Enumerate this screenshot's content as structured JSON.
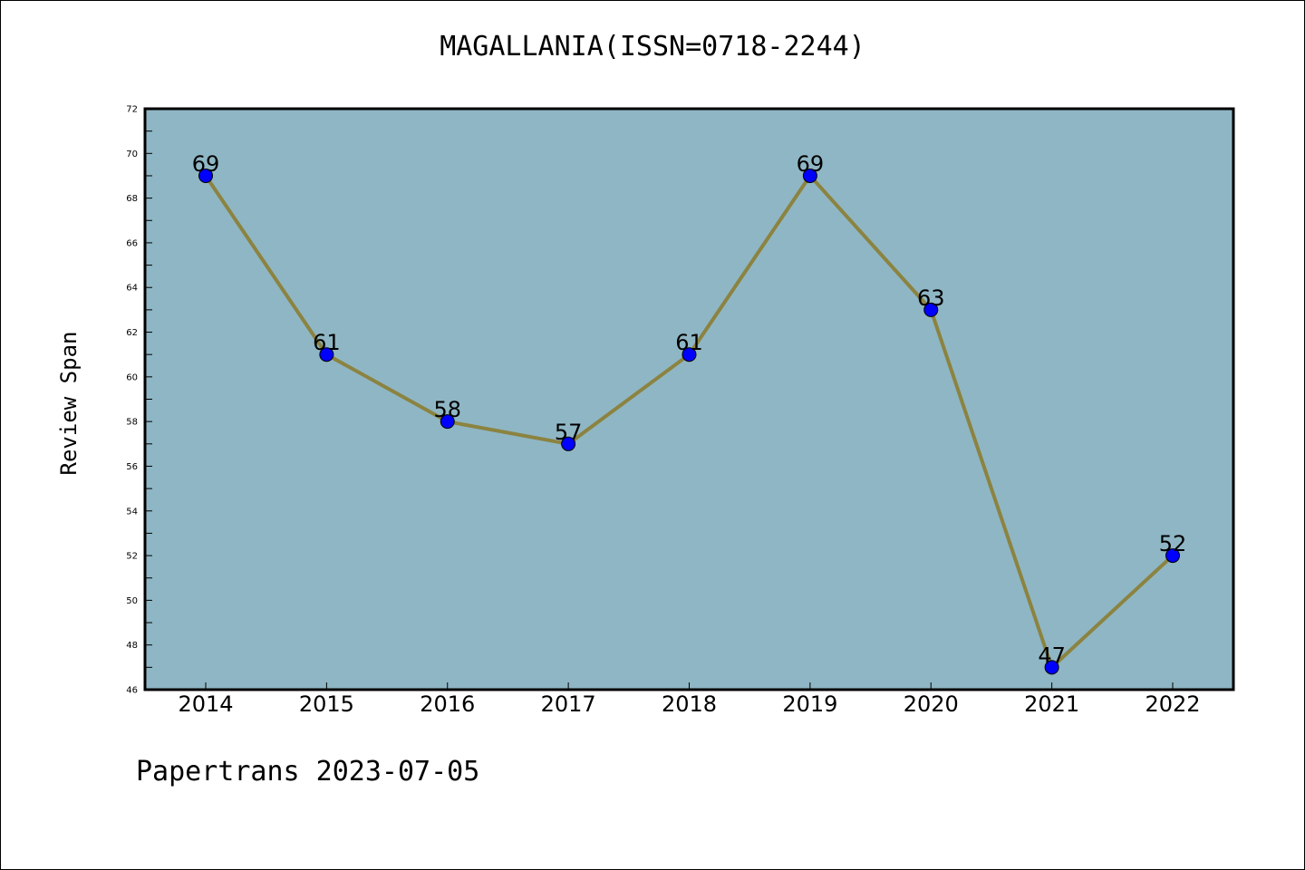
{
  "chart_data": {
    "type": "line",
    "title": "MAGALLANIA(ISSN=0718-2244)",
    "ylabel": "Review Span",
    "xlabel": "",
    "categories": [
      "2014",
      "2015",
      "2016",
      "2017",
      "2018",
      "2019",
      "2020",
      "2021",
      "2022"
    ],
    "series": [
      {
        "values": [
          69,
          61,
          58,
          57,
          61,
          69,
          63,
          47,
          52
        ],
        "line_color": "#8b8340",
        "marker_color": "#0000ff"
      }
    ],
    "ylim": [
      46,
      72
    ],
    "yticks": [
      46,
      48,
      50,
      52,
      54,
      56,
      58,
      60,
      62,
      64,
      66,
      68,
      70,
      72
    ],
    "plot_background": "#8fb6c4",
    "grid": false,
    "legend": "none"
  },
  "footer": {
    "text": "Papertrans 2023-07-05"
  }
}
